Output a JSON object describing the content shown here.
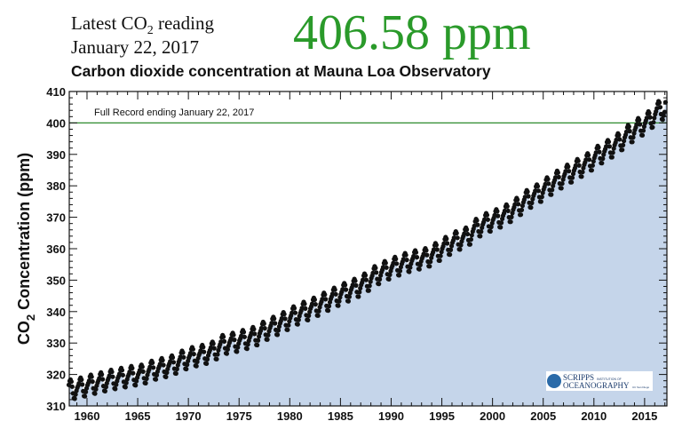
{
  "header": {
    "latest_prefix": "Latest CO",
    "latest_sub": "2",
    "latest_suffix": " reading",
    "date": "January 22, 2017",
    "reading": "406.58 ppm"
  },
  "chart_data": {
    "type": "scatter",
    "title": "Carbon dioxide concentration at Mauna Loa Observatory",
    "annotation": "Full Record ending January 22, 2017",
    "ylabel_prefix": "CO",
    "ylabel_sub": "2",
    "ylabel_suffix": " Concentration (ppm)",
    "xlabel": "",
    "xlim": [
      1958.25,
      2017.2
    ],
    "ylim": [
      310,
      410
    ],
    "xticks": [
      1960,
      1965,
      1970,
      1975,
      1980,
      1985,
      1990,
      1995,
      2000,
      2005,
      2010,
      2015
    ],
    "yticks": [
      310,
      320,
      330,
      340,
      350,
      360,
      370,
      380,
      390,
      400,
      410
    ],
    "reference_line": {
      "y": 400,
      "color": "#2e8b2e"
    },
    "fill_color": "#c5d5ea",
    "point_color": "#111111",
    "annual_mean_years": [
      1958,
      1959,
      1960,
      1961,
      1962,
      1963,
      1964,
      1965,
      1966,
      1967,
      1968,
      1969,
      1970,
      1971,
      1972,
      1973,
      1974,
      1975,
      1976,
      1977,
      1978,
      1979,
      1980,
      1981,
      1982,
      1983,
      1984,
      1985,
      1986,
      1987,
      1988,
      1989,
      1990,
      1991,
      1992,
      1993,
      1994,
      1995,
      1996,
      1997,
      1998,
      1999,
      2000,
      2001,
      2002,
      2003,
      2004,
      2005,
      2006,
      2007,
      2008,
      2009,
      2010,
      2011,
      2012,
      2013,
      2014,
      2015,
      2016
    ],
    "annual_mean_ppm": [
      315.3,
      315.97,
      316.91,
      317.64,
      318.45,
      318.99,
      319.62,
      320.04,
      321.38,
      322.16,
      323.04,
      324.62,
      325.68,
      326.32,
      327.45,
      329.68,
      330.18,
      331.11,
      332.04,
      333.83,
      335.4,
      336.84,
      338.75,
      340.11,
      341.45,
      343.05,
      344.65,
      346.12,
      347.42,
      349.19,
      351.57,
      353.12,
      354.39,
      355.61,
      356.45,
      357.1,
      358.83,
      360.82,
      362.61,
      363.73,
      366.7,
      368.38,
      369.55,
      371.14,
      373.28,
      375.8,
      377.52,
      379.8,
      381.9,
      383.79,
      385.6,
      387.43,
      389.9,
      391.65,
      393.85,
      396.52,
      398.65,
      400.83,
      404.21
    ],
    "seasonal_offset_by_month": [
      0.1,
      0.7,
      1.4,
      2.6,
      3.1,
      2.4,
      0.8,
      -1.4,
      -3.0,
      -3.2,
      -1.9,
      -0.8
    ],
    "latest_point": {
      "x": 2017.06,
      "y": 406.58
    }
  },
  "logo": {
    "line1": "SCRIPPS",
    "line1b": "INSTITUTION OF",
    "line2": "OCEANOGRAPHY",
    "line2b": "UC San Diego"
  }
}
